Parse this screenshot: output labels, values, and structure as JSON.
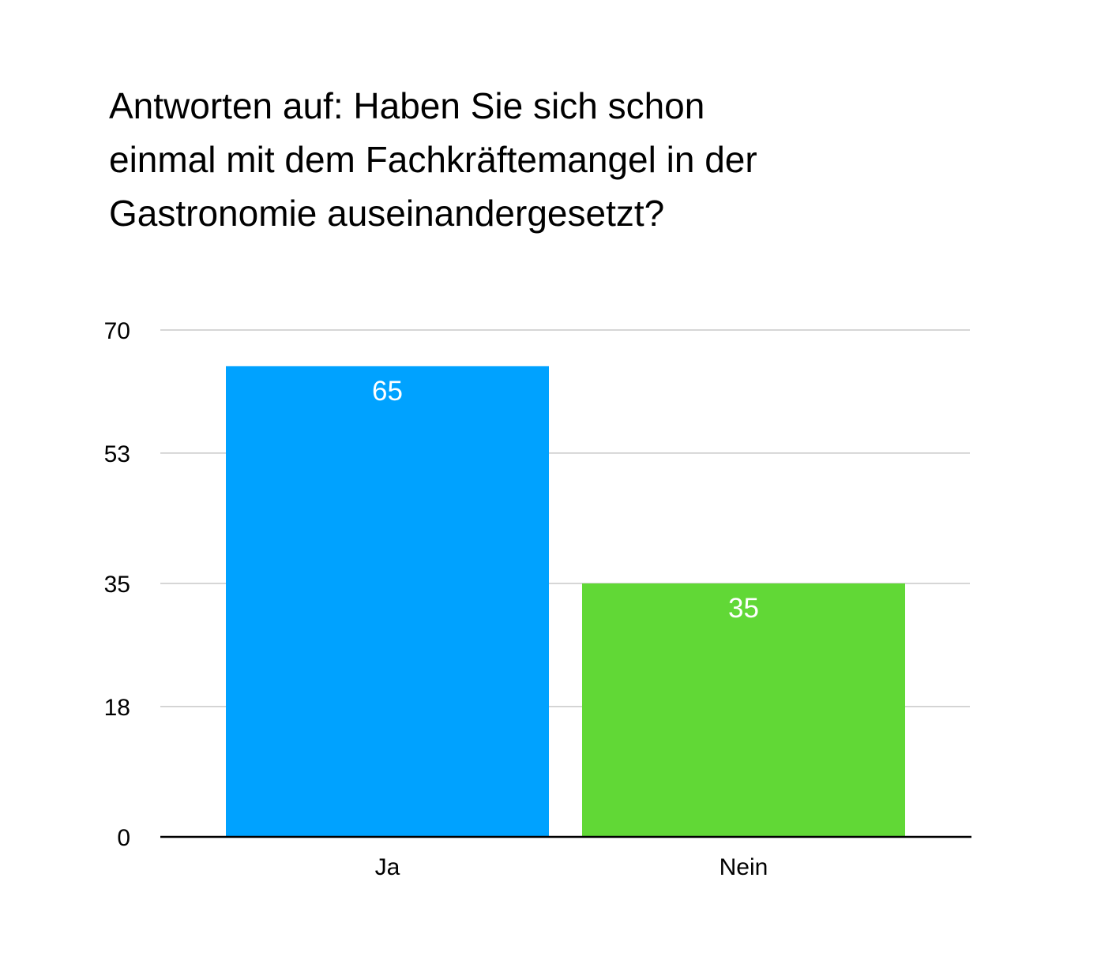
{
  "chart_data": {
    "type": "bar",
    "title_lines": [
      "Antworten auf: Haben Sie sich schon",
      "einmal mit dem Fachkräftemangel in der",
      "Gastronomie auseinandergesetzt?"
    ],
    "categories": [
      "Ja",
      "Nein"
    ],
    "values": [
      65,
      35
    ],
    "colors": [
      "#00A2FF",
      "#61D836"
    ],
    "yticks": [
      0,
      18,
      35,
      53,
      70
    ],
    "ylim": [
      0,
      70
    ],
    "xlabel": "",
    "ylabel": "",
    "grid": true,
    "legend": "none"
  }
}
